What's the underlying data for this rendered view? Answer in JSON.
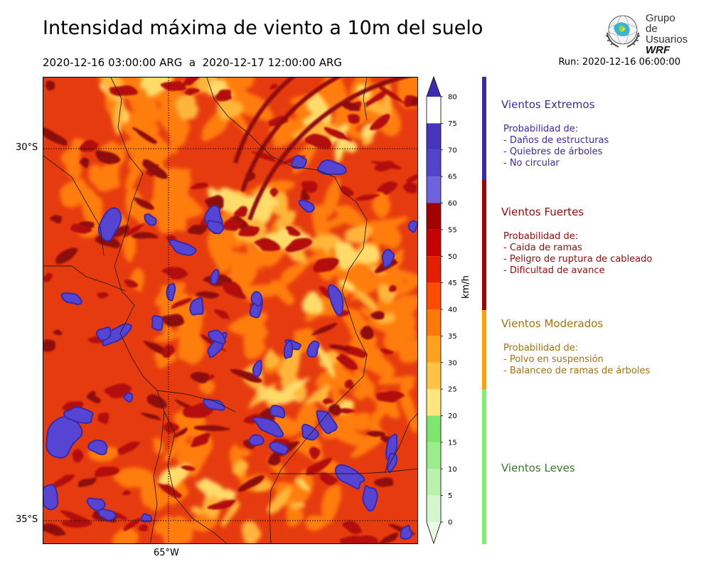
{
  "header": {
    "title": "Intensidad máxima de viento a 10m del suelo",
    "period": "2020-12-16 03:00:00 ARG  a  2020-12-17 12:00:00 ARG",
    "run": "Run: 2020-12-16 06:00:00"
  },
  "logo": {
    "line1": "Grupo de",
    "line2": "Usuarios",
    "line3": "WRF"
  },
  "map": {
    "lat_labels": [
      "30°S",
      "35°S"
    ],
    "lon_labels": [
      "65°W"
    ],
    "colors": {
      "base": "#e63b0f",
      "orange": "#ff7d0c",
      "light_orange": "#ffb53a",
      "yellow": "#ffdc6a",
      "dark_red": "#b30d0d",
      "very_dark_red": "#8e0808",
      "purple": "#5545d2",
      "dark_purple": "#3a2aa8"
    }
  },
  "colorbar": {
    "unit": "km/h",
    "ticks": [
      "0",
      "5",
      "10",
      "15",
      "20",
      "25",
      "30",
      "35",
      "40",
      "45",
      "50",
      "55",
      "60",
      "65",
      "70",
      "75",
      "80"
    ],
    "colors": [
      "#e9fbe6",
      "#d4f7cd",
      "#b8f2ad",
      "#9aec8c",
      "#7ee66f",
      "#ffe680",
      "#ffc446",
      "#ffa11b",
      "#ff7808",
      "#ff4d00",
      "#e51e00",
      "#c40000",
      "#a30000",
      "#6e62dd",
      "#5443cb",
      "#4735bd",
      "#3d2bb1"
    ]
  },
  "categories": [
    {
      "name": "Vientos Extremos",
      "color": "#3b2aa8",
      "bar_color": "#3b2aa8",
      "prob_title": "Probabilidad de:",
      "items": [
        "- Daños de estructuras",
        "- Quiebres de árboles",
        "- No circular"
      ]
    },
    {
      "name": "Vientos Fuertes",
      "color": "#9a0a0a",
      "bar_color": "#a30000",
      "prob_title": "Probabilidad de:",
      "items": [
        "- Caida de ramas",
        "- Peligro de ruptura de cableado",
        "- Dificultad de avance"
      ]
    },
    {
      "name": "Vientos Moderados",
      "color": "#a6720e",
      "bar_color": "#ff9f00",
      "prob_title": "Probabilidad de:",
      "items": [
        "- Polvo en suspensión",
        "- Balanceo de ramas de árboles"
      ]
    },
    {
      "name": "Vientos Leves",
      "color": "#3b7a2e",
      "bar_color": "#7ef070",
      "prob_title": "",
      "items": []
    }
  ]
}
